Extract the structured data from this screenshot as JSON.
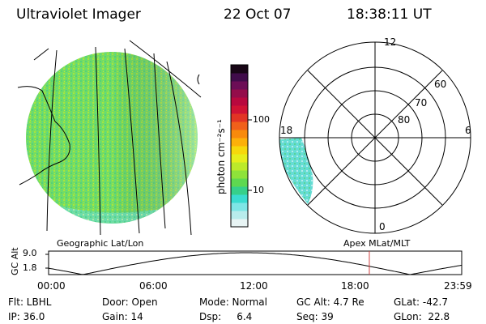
{
  "header": {
    "instrument": "Ultraviolet Imager",
    "date": "22 Oct 07",
    "time": "18:38:11 UT"
  },
  "colorbar": {
    "unit_label": "photon cm⁻²s⁻¹",
    "ticks": [
      "100",
      "10"
    ],
    "colors": [
      "#e8f4f4",
      "#b8ecec",
      "#7ee6e6",
      "#3adcd0",
      "#36d08a",
      "#5ed850",
      "#8ee23a",
      "#bcea2a",
      "#e6ee1c",
      "#f6d80c",
      "#fcb00a",
      "#f88a0c",
      "#f0601a",
      "#e23424",
      "#d01234",
      "#b8083e",
      "#940c4a",
      "#6c0e56",
      "#400c4a",
      "#180616"
    ]
  },
  "polar_plot": {
    "hour_labels": [
      "12",
      "18",
      "6",
      "0"
    ],
    "lat_labels": [
      "60",
      "70",
      "80"
    ]
  },
  "timeline": {
    "ylabel": "GC Alt",
    "y_ticks": [
      "9.0",
      "1.8"
    ],
    "left_label": "Geographic Lat/Lon",
    "right_label": "Apex  MLat/MLT",
    "x_ticks": [
      "00:00",
      "06:00",
      "12:00",
      "18:00",
      "23:59"
    ],
    "marker_time": "18:38"
  },
  "info": {
    "filter": "Flt: LBHL",
    "ip": "IP: 36.0",
    "door": "Door: Open",
    "gain": "Gain: 14",
    "mode": "Mode: Normal",
    "dsp": "Dsp:     6.4",
    "gc_alt": "GC Alt: 4.7 Re",
    "seq": "Seq: 39",
    "glat": "GLat: -42.7",
    "glon": "GLon:  22.8"
  }
}
